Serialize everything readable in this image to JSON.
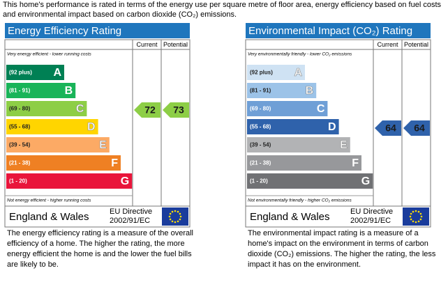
{
  "intro": "This home's performance is rated in terms of the energy use per square metre of floor area, energy efficiency based on fuel costs and environmental impact based on carbon dioxide (CO₂) emissions.",
  "panels": [
    {
      "title": "Energy Efficiency Rating",
      "columns": [
        "Current",
        "Potential"
      ],
      "top_note": "Very energy efficient - lower running costs",
      "bottom_note": "Not energy efficient - higher running costs",
      "bands": [
        {
          "range": "(92 plus)",
          "letter": "A",
          "color": "#008054"
        },
        {
          "range": "(81 - 91)",
          "letter": "B",
          "color": "#19b459"
        },
        {
          "range": "(69 - 80)",
          "letter": "C",
          "color": "#8dce46"
        },
        {
          "range": "(55 - 68)",
          "letter": "D",
          "color": "#ffd500"
        },
        {
          "range": "(39 - 54)",
          "letter": "E",
          "color": "#fcaa65"
        },
        {
          "range": "(21 - 38)",
          "letter": "F",
          "color": "#ef8023"
        },
        {
          "range": "(1 - 20)",
          "letter": "G",
          "color": "#e9153b"
        }
      ],
      "current": 72,
      "potential": 73,
      "region": "England & Wales",
      "directive": [
        "EU Directive",
        "2002/91/EC"
      ],
      "description": "The energy efficiency rating is a measure of the overall efficiency of a home. The higher the rating, the more energy efficient the home is and the lower the fuel bills are likely to be."
    },
    {
      "title": "Environmental Impact (CO₂) Rating",
      "columns": [
        "Current",
        "Potential"
      ],
      "top_note": "Very environmentally friendly - lower CO₂ emissions",
      "bottom_note": "Not environmentally friendly - higher CO₂ emissions",
      "bands": [
        {
          "range": "(92 plus)",
          "letter": "A",
          "color": "#cfe2f3"
        },
        {
          "range": "(81 - 91)",
          "letter": "B",
          "color": "#9cc3e8"
        },
        {
          "range": "(69 - 80)",
          "letter": "C",
          "color": "#6f9fd6"
        },
        {
          "range": "(55 - 68)",
          "letter": "D",
          "color": "#2f62ab"
        },
        {
          "range": "(39 - 54)",
          "letter": "E",
          "color": "#b2b3b5"
        },
        {
          "range": "(21 - 38)",
          "letter": "F",
          "color": "#97989b"
        },
        {
          "range": "(1 - 20)",
          "letter": "G",
          "color": "#707174"
        }
      ],
      "current": 64,
      "potential": 64,
      "region": "England & Wales",
      "directive": [
        "EU Directive",
        "2002/91/EC"
      ],
      "description": "The environmental impact rating is a measure of a home's impact on the environment in terms of carbon dioxide (CO₂) emissions. The higher the rating, the less impact it has on the environment."
    }
  ]
}
